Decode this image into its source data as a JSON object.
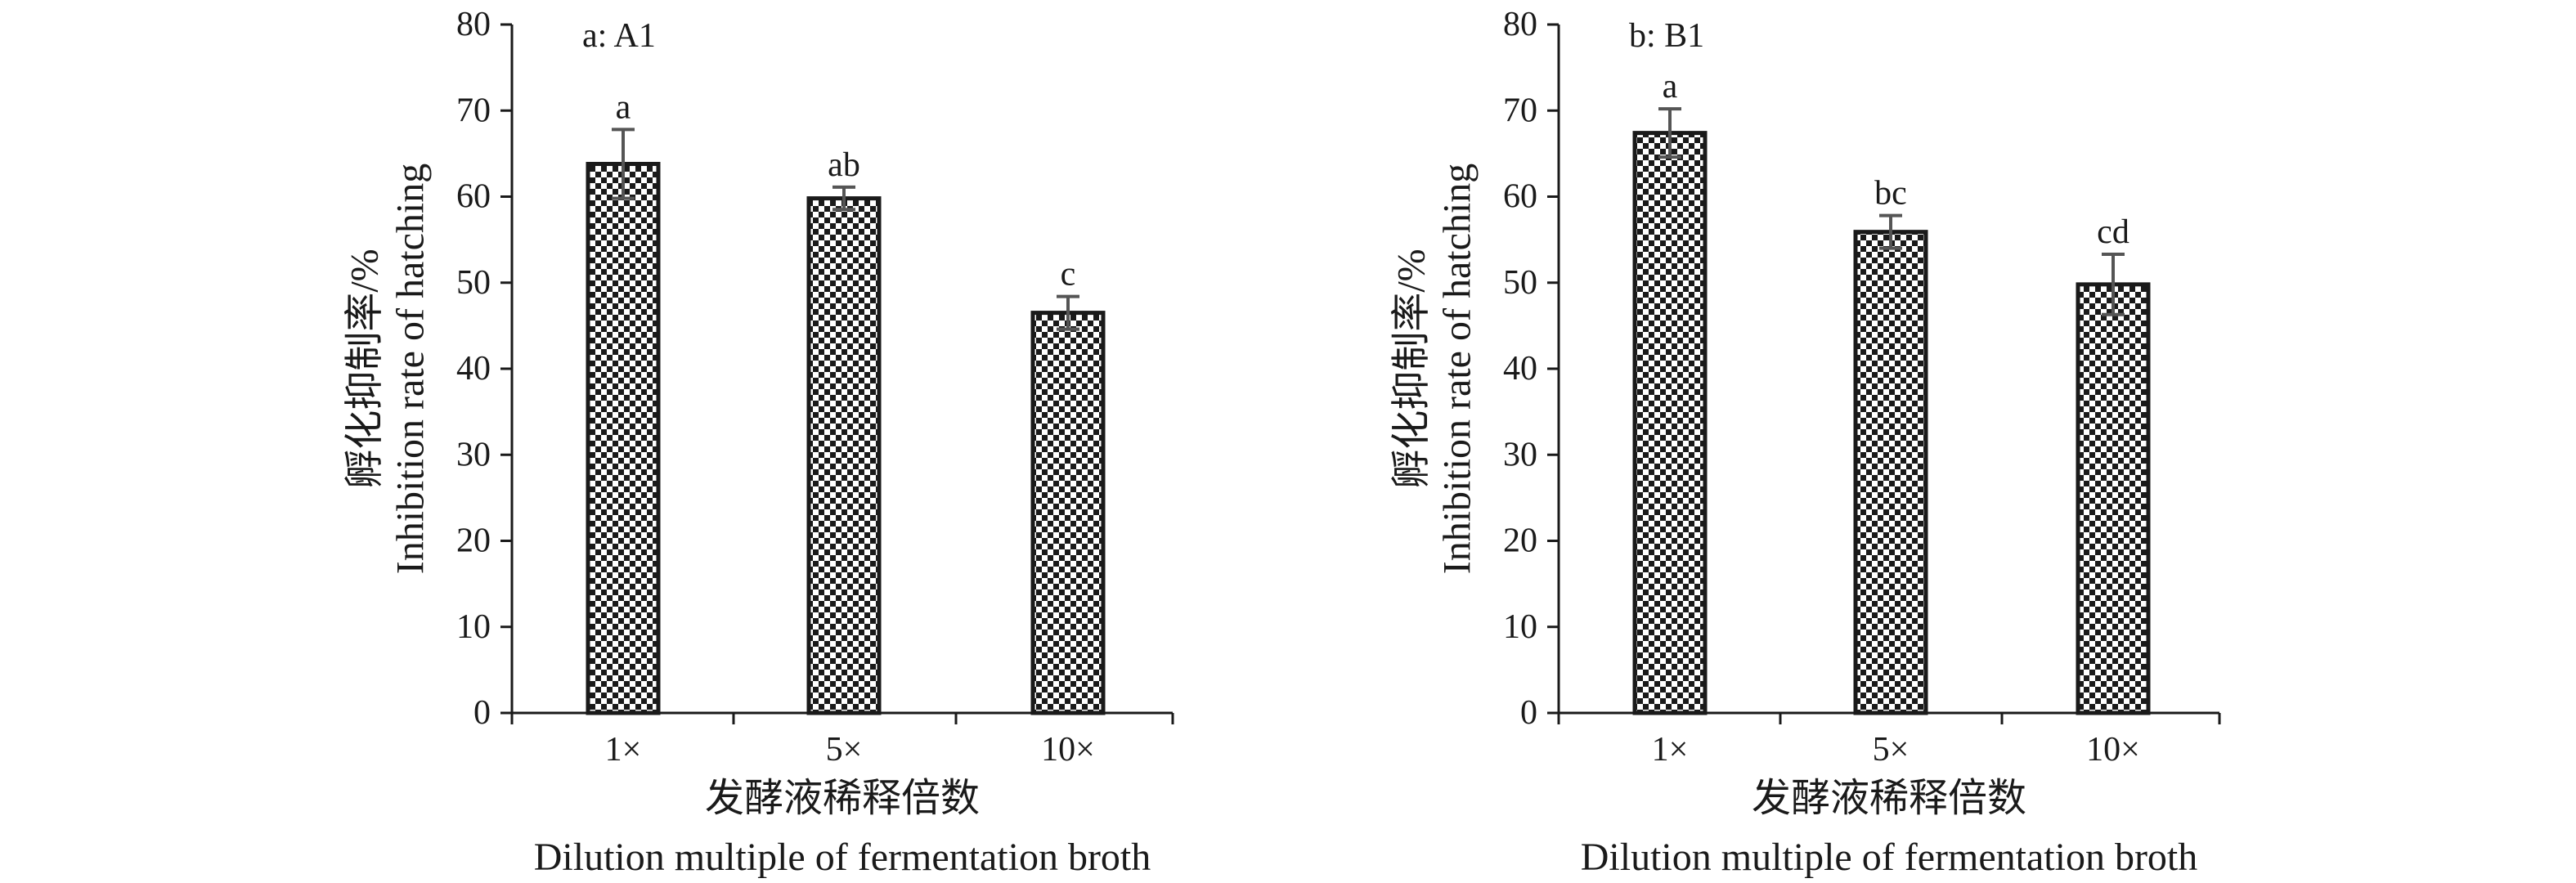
{
  "chart_data": [
    {
      "type": "bar",
      "title": "a: A1",
      "categories": [
        "1×",
        "5×",
        "10×"
      ],
      "values": [
        63.8,
        59.8,
        46.5
      ],
      "errors": [
        4.0,
        1.3,
        1.9
      ],
      "significance": [
        "a",
        "ab",
        "c"
      ],
      "ylabel_cn": "孵化抑制率/%",
      "ylabel_en": "Inhibition rate of hatching",
      "xlabel_cn": "发酵液稀释倍数",
      "xlabel_en": "Dilution multiple of fermentation broth",
      "ylim": [
        0,
        80
      ],
      "yticks": [
        0,
        10,
        20,
        30,
        40,
        50,
        60,
        70,
        80
      ],
      "grid": false,
      "legend": "none",
      "bar_fill": "checkered black and white",
      "colors": {
        "bar_edge": "#1a1a1a",
        "error_bar": "#555555",
        "axis": "#1a1a1a"
      }
    },
    {
      "type": "bar",
      "title": "b: B1",
      "categories": [
        "1×",
        "5×",
        "10×"
      ],
      "values": [
        67.4,
        55.9,
        49.8
      ],
      "errors": [
        2.8,
        1.9,
        3.5
      ],
      "significance": [
        "a",
        "bc",
        "cd"
      ],
      "ylabel_cn": "孵化抑制率/%",
      "ylabel_en": "Inhibition rate of hatching",
      "xlabel_cn": "发酵液稀释倍数",
      "xlabel_en": "Dilution multiple of fermentation broth",
      "ylim": [
        0,
        80
      ],
      "yticks": [
        0,
        10,
        20,
        30,
        40,
        50,
        60,
        70,
        80
      ],
      "grid": false,
      "legend": "none",
      "bar_fill": "checkered black and white",
      "colors": {
        "bar_edge": "#1a1a1a",
        "error_bar": "#555555",
        "axis": "#1a1a1a"
      }
    }
  ]
}
